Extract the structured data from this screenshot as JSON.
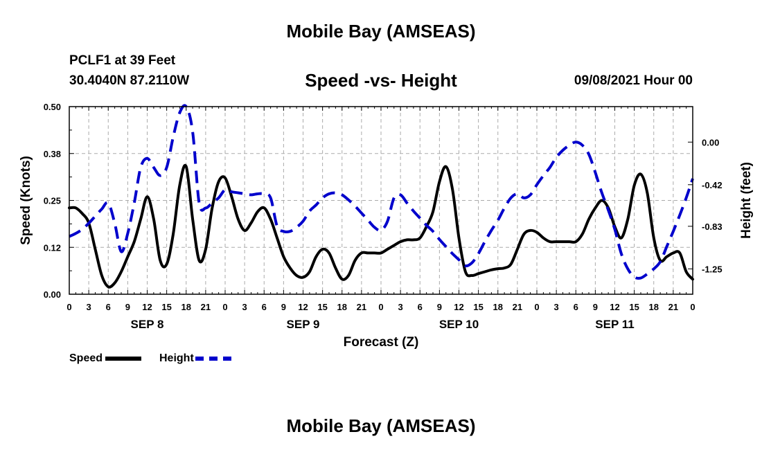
{
  "header": {
    "title": "Mobile Bay (AMSEAS)",
    "station": "PCLF1 at 39 Feet",
    "coords": "30.4040N  87.2110W",
    "subtitle": "Speed -vs- Height",
    "datetime": "09/08/2021 Hour 00"
  },
  "footer": {
    "title": "Mobile Bay (AMSEAS)"
  },
  "legend": {
    "speed_label": "Speed",
    "height_label": "Height"
  },
  "colors": {
    "speed": "#000000",
    "height": "#0000cc",
    "grid": "#aaaaaa"
  },
  "chart_data": {
    "type": "line",
    "xlabel": "Forecast (Z)",
    "ylabel_left": "Speed (Knots)",
    "ylabel_right": "Height (feet)",
    "x_range_hours": [
      0,
      96
    ],
    "x_tick_labels": [
      "0",
      "3",
      "6",
      "9",
      "12",
      "15",
      "18",
      "21",
      "0",
      "3",
      "6",
      "9",
      "12",
      "15",
      "18",
      "21",
      "0",
      "3",
      "6",
      "9",
      "12",
      "15",
      "18",
      "21",
      "0",
      "3",
      "6",
      "9",
      "12",
      "15",
      "18",
      "21",
      "0"
    ],
    "date_labels": [
      {
        "hour": 12,
        "label": "SEP 8"
      },
      {
        "hour": 36,
        "label": "SEP 9"
      },
      {
        "hour": 60,
        "label": "SEP 10"
      },
      {
        "hour": 84,
        "label": "SEP 11"
      }
    ],
    "y_left": {
      "range": [
        0,
        0.5
      ],
      "ticks": [
        0.0,
        0.125,
        0.25,
        0.375,
        0.5
      ],
      "tick_labels": [
        "0.00",
        "0.12",
        "0.25",
        "0.38",
        "0.50"
      ]
    },
    "y_right": {
      "range": [
        -1.5,
        0.35
      ],
      "ticks": [
        0.0,
        -0.42,
        -0.83,
        -1.25
      ],
      "tick_labels": [
        "0.00",
        "-0.42",
        "-0.83",
        "-1.25"
      ]
    },
    "grid": true,
    "series": [
      {
        "name": "Speed",
        "axis": "left",
        "style": "solid",
        "x": [
          0,
          1,
          2,
          3,
          4,
          5,
          6,
          7,
          8,
          9,
          10,
          11,
          12,
          13,
          14,
          15,
          16,
          17,
          18,
          19,
          20,
          21,
          22,
          23,
          24,
          25,
          26,
          27,
          28,
          29,
          30,
          31,
          32,
          33,
          34,
          35,
          36,
          37,
          38,
          39,
          40,
          41,
          42,
          43,
          44,
          45,
          46,
          47,
          48,
          49,
          50,
          51,
          52,
          53,
          54,
          55,
          56,
          57,
          58,
          59,
          60,
          61,
          62,
          63,
          64,
          65,
          66,
          67,
          68,
          69,
          70,
          71,
          72,
          73,
          74,
          75,
          76,
          77,
          78,
          79,
          80,
          81,
          82,
          83,
          84,
          85,
          86,
          87,
          88,
          89,
          90,
          91,
          92,
          93,
          94,
          95,
          96
        ],
        "values": [
          0.23,
          0.23,
          0.215,
          0.19,
          0.12,
          0.05,
          0.02,
          0.03,
          0.06,
          0.1,
          0.14,
          0.2,
          0.26,
          0.2,
          0.09,
          0.08,
          0.16,
          0.29,
          0.34,
          0.2,
          0.09,
          0.12,
          0.23,
          0.3,
          0.31,
          0.26,
          0.2,
          0.17,
          0.19,
          0.22,
          0.23,
          0.2,
          0.15,
          0.1,
          0.07,
          0.05,
          0.045,
          0.06,
          0.1,
          0.12,
          0.11,
          0.07,
          0.04,
          0.05,
          0.09,
          0.11,
          0.11,
          0.11,
          0.11,
          0.12,
          0.13,
          0.14,
          0.145,
          0.145,
          0.15,
          0.18,
          0.22,
          0.3,
          0.34,
          0.28,
          0.15,
          0.06,
          0.05,
          0.055,
          0.06,
          0.065,
          0.068,
          0.07,
          0.08,
          0.12,
          0.16,
          0.17,
          0.165,
          0.15,
          0.14,
          0.14,
          0.14,
          0.14,
          0.14,
          0.16,
          0.2,
          0.23,
          0.25,
          0.23,
          0.18,
          0.15,
          0.2,
          0.29,
          0.32,
          0.27,
          0.15,
          0.09,
          0.1,
          0.11,
          0.11,
          0.06,
          0.04
        ]
      },
      {
        "name": "Height",
        "axis": "right",
        "style": "dashed",
        "x": [
          0,
          1,
          2,
          3,
          4,
          5,
          6,
          7,
          8,
          9,
          10,
          11,
          12,
          13,
          14,
          15,
          16,
          17,
          18,
          19,
          20,
          21,
          22,
          23,
          24,
          25,
          26,
          27,
          28,
          29,
          30,
          31,
          32,
          33,
          34,
          35,
          36,
          37,
          38,
          39,
          40,
          41,
          42,
          43,
          44,
          45,
          46,
          47,
          48,
          49,
          50,
          51,
          52,
          53,
          54,
          55,
          56,
          57,
          58,
          59,
          60,
          61,
          62,
          63,
          64,
          65,
          66,
          67,
          68,
          69,
          70,
          71,
          72,
          73,
          74,
          75,
          76,
          77,
          78,
          79,
          80,
          81,
          82,
          83,
          84,
          85,
          86,
          87,
          88,
          89,
          90,
          91,
          92,
          93,
          94,
          95,
          96
        ],
        "values": [
          -0.93,
          -0.9,
          -0.86,
          -0.8,
          -0.73,
          -0.66,
          -0.6,
          -0.8,
          -1.08,
          -0.9,
          -0.6,
          -0.25,
          -0.16,
          -0.25,
          -0.33,
          -0.25,
          0.05,
          0.29,
          0.35,
          0.1,
          -0.6,
          -0.65,
          -0.6,
          -0.55,
          -0.47,
          -0.49,
          -0.5,
          -0.51,
          -0.52,
          -0.51,
          -0.51,
          -0.55,
          -0.83,
          -0.88,
          -0.88,
          -0.84,
          -0.78,
          -0.68,
          -0.62,
          -0.55,
          -0.51,
          -0.5,
          -0.52,
          -0.57,
          -0.63,
          -0.7,
          -0.77,
          -0.84,
          -0.87,
          -0.78,
          -0.55,
          -0.52,
          -0.6,
          -0.68,
          -0.75,
          -0.82,
          -0.88,
          -0.96,
          -1.03,
          -1.1,
          -1.16,
          -1.22,
          -1.19,
          -1.1,
          -0.98,
          -0.87,
          -0.77,
          -0.65,
          -0.55,
          -0.51,
          -0.55,
          -0.52,
          -0.42,
          -0.33,
          -0.25,
          -0.15,
          -0.08,
          -0.03,
          0.0,
          -0.03,
          -0.12,
          -0.3,
          -0.5,
          -0.67,
          -0.86,
          -1.1,
          -1.25,
          -1.33,
          -1.34,
          -1.3,
          -1.25,
          -1.18,
          -1.03,
          -0.88,
          -0.72,
          -0.55,
          -0.36
        ]
      }
    ]
  }
}
